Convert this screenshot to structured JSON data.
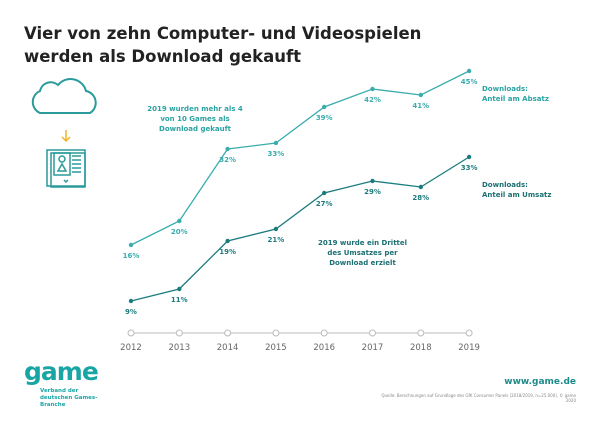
{
  "title": "Vier von zehn Computer- und Videospielen werden als Download gekauft",
  "colors": {
    "absatz": "#3aacad",
    "umsatz": "#1b7c7f",
    "axis": "#bbbbbb",
    "arrow": "#f0b429"
  },
  "icons": [
    "cloud-icon",
    "download-arrow-icon",
    "game-box-icon"
  ],
  "chart_data": {
    "type": "line",
    "categories": [
      "2012",
      "2013",
      "2014",
      "2015",
      "2016",
      "2017",
      "2018",
      "2019"
    ],
    "series": [
      {
        "name": "Downloads: Anteil am Absatz",
        "values": [
          16,
          20,
          32,
          33,
          39,
          42,
          41,
          45
        ],
        "labels": [
          "16%",
          "20%",
          "32%",
          "33%",
          "39%",
          "42%",
          "41%",
          "45%"
        ]
      },
      {
        "name": "Downloads: Anteil am Umsatz",
        "values": [
          9,
          11,
          19,
          21,
          27,
          29,
          28,
          33
        ],
        "labels": [
          "9%",
          "11%",
          "19%",
          "21%",
          "27%",
          "29%",
          "28%",
          "33%"
        ]
      }
    ],
    "series_labels": [
      [
        "Downloads:",
        "Anteil am Absatz"
      ],
      [
        "Downloads:",
        "Anteil am Umsatz"
      ]
    ],
    "annotations": [
      "2019 wurden mehr als 4 von 10 Games als Download gekauft",
      "2019 wurde ein Drittel des Umsatzes per Download erzielt"
    ],
    "grid": false
  },
  "footer": {
    "logo": "game",
    "logo_sub": "Verband der deutschen Games-Branche",
    "url": "www.game.de",
    "source": "Quelle: Berechnungen auf Grundlage des GfK Consumer Panels (2018/2019, n=25.000), © game 2020"
  }
}
